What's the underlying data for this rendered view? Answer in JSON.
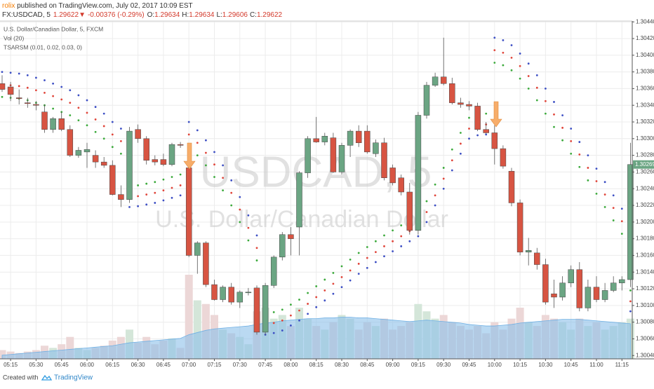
{
  "header": {
    "author": "rolix",
    "published": "published on TradingView.com, July 02, 2017 10:09 EST",
    "symbol": "FX:USDCAD, 5",
    "last": "1.29622",
    "arrow": "▼",
    "change": "-0.00376 (-0.29%)",
    "o_label": "O:",
    "o": "1.29634",
    "h_label": "H:",
    "h": "1.29634",
    "l_label": "L:",
    "l": "1.29606",
    "c_label": "C:",
    "c": "1.29622"
  },
  "footer": {
    "created": "Created with",
    "brand": "TradingView"
  },
  "chart_data": {
    "type": "candlestick",
    "title": "U.S. Dollar/Canadian Dollar, 5, FXCM",
    "watermark": [
      "USDCAD, 5",
      "U.S. Dollar/Canadian Dollar"
    ],
    "up_color": "#6ba583",
    "down_color": "#d75442",
    "grid": true,
    "ylim": [
      1.30036,
      1.30441
    ],
    "yticks": [
      {
        "value": 1.3004,
        "label": "1.30040"
      },
      {
        "value": 1.3006,
        "label": "1.30060"
      },
      {
        "value": 1.3008,
        "label": "1.30080"
      },
      {
        "value": 1.301,
        "label": "1.30100"
      },
      {
        "value": 1.3012,
        "label": "1.30120"
      },
      {
        "value": 1.3014,
        "label": "1.30140"
      },
      {
        "value": 1.3016,
        "label": "1.30160"
      },
      {
        "value": 1.3018,
        "label": "1.30180"
      },
      {
        "value": 1.302,
        "label": "1.30200"
      },
      {
        "value": 1.3022,
        "label": "1.30220"
      },
      {
        "value": 1.3024,
        "label": "1.30240"
      },
      {
        "value": 1.3026,
        "label": "1.30260"
      },
      {
        "value": 1.3028,
        "label": "1.30280"
      },
      {
        "value": 1.303,
        "label": "1.30300"
      },
      {
        "value": 1.3032,
        "label": "1.30320"
      },
      {
        "value": 1.3034,
        "label": "1.30340"
      },
      {
        "value": 1.3036,
        "label": "1.30360"
      },
      {
        "value": 1.3038,
        "label": "1.30380"
      },
      {
        "value": 1.304,
        "label": "1.30400"
      },
      {
        "value": 1.3042,
        "label": "1.30420"
      },
      {
        "value": 1.3044,
        "label": "1.30440"
      }
    ],
    "x": [
      "05:10",
      "05:15",
      "05:20",
      "05:25",
      "05:30",
      "05:35",
      "05:40",
      "05:45",
      "05:50",
      "05:55",
      "06:00",
      "06:05",
      "06:10",
      "06:15",
      "06:20",
      "06:25",
      "06:30",
      "06:35",
      "06:40",
      "06:45",
      "06:50",
      "06:55",
      "07:00",
      "07:05",
      "07:10",
      "07:15",
      "07:20",
      "07:25",
      "07:30",
      "07:35",
      "07:40",
      "07:45",
      "07:50",
      "07:55",
      "08:00",
      "08:05",
      "08:10",
      "08:15",
      "08:20",
      "08:25",
      "08:30",
      "08:35",
      "08:40",
      "08:45",
      "08:50",
      "08:55",
      "09:00",
      "09:05",
      "09:10",
      "09:15",
      "09:20",
      "09:25",
      "09:30",
      "09:35",
      "09:40",
      "09:45",
      "09:50",
      "09:55",
      "10:00",
      "10:05",
      "10:10",
      "10:15",
      "10:20",
      "10:25",
      "10:30",
      "10:35",
      "10:40",
      "10:45",
      "10:50",
      "10:55",
      "11:00",
      "11:05",
      "11:10",
      "11:15",
      "11:20"
    ],
    "xticks": [
      "05:15",
      "05:30",
      "05:45",
      "06:00",
      "06:15",
      "06:30",
      "06:45",
      "07:00",
      "07:15",
      "07:30",
      "07:45",
      "08:00",
      "08:15",
      "08:30",
      "08:45",
      "09:00",
      "09:15",
      "09:30",
      "09:45",
      "10:00",
      "10:15",
      "10:30",
      "10:45",
      "11:00",
      "11:15"
    ],
    "open": [
      1.30366,
      1.30362,
      1.30349,
      1.30343,
      1.30341,
      1.30332,
      1.30311,
      1.30324,
      1.30311,
      1.3028,
      1.30284,
      1.3028,
      1.30272,
      1.30268,
      1.30233,
      1.30227,
      1.30311,
      1.303,
      1.30275,
      1.30275,
      1.30269,
      1.30293,
      1.30265,
      1.3016,
      1.30175,
      1.30125,
      1.30107,
      1.30122,
      1.30104,
      1.30116,
      1.30121,
      1.30068,
      1.30124,
      1.30158,
      1.30185,
      1.30194,
      1.30259,
      1.303,
      1.30296,
      1.30301,
      1.3026,
      1.30292,
      1.30309,
      1.30309,
      1.30282,
      1.30295,
      1.30265,
      1.30253,
      1.30236,
      1.3019,
      1.30328,
      1.30364,
      1.30374,
      1.30366,
      1.30343,
      1.30341,
      1.30339,
      1.30311,
      1.30307,
      1.30288,
      1.30261,
      1.30223,
      1.30164,
      1.30163,
      1.30149,
      1.30114,
      1.3011,
      1.30127,
      1.30143,
      1.30097,
      1.30122,
      1.30107,
      1.30118,
      1.30127,
      1.30131
    ],
    "high": [
      1.30376,
      1.30368,
      1.30359,
      1.30349,
      1.30345,
      1.30341,
      1.30326,
      1.30332,
      1.30316,
      1.3029,
      1.30295,
      1.30286,
      1.30278,
      1.30274,
      1.30244,
      1.30314,
      1.30317,
      1.30303,
      1.3028,
      1.30282,
      1.30295,
      1.30296,
      1.30267,
      1.30177,
      1.30177,
      1.30131,
      1.30124,
      1.30127,
      1.30118,
      1.30121,
      1.30124,
      1.30127,
      1.3016,
      1.30188,
      1.30194,
      1.30261,
      1.30303,
      1.30326,
      1.30307,
      1.30307,
      1.30295,
      1.30311,
      1.30316,
      1.30316,
      1.30299,
      1.30301,
      1.30269,
      1.30257,
      1.30247,
      1.30332,
      1.30368,
      1.30379,
      1.30421,
      1.30373,
      1.30349,
      1.30345,
      1.30343,
      1.3032,
      1.30316,
      1.30292,
      1.30265,
      1.30227,
      1.30181,
      1.30169,
      1.30156,
      1.30131,
      1.30135,
      1.30148,
      1.30152,
      1.30131,
      1.30135,
      1.30127,
      1.30135,
      1.30135,
      1.30295
    ],
    "low": [
      1.30356,
      1.30345,
      1.30341,
      1.30337,
      1.30334,
      1.30307,
      1.30307,
      1.30309,
      1.30278,
      1.30277,
      1.30265,
      1.30265,
      1.30265,
      1.30232,
      1.30218,
      1.30223,
      1.30295,
      1.30269,
      1.30268,
      1.30267,
      1.30267,
      1.30289,
      1.30158,
      1.30138,
      1.30122,
      1.30106,
      1.30104,
      1.30101,
      1.30097,
      1.30112,
      1.30065,
      1.30065,
      1.30121,
      1.30154,
      1.3016,
      1.3016,
      1.30253,
      1.30295,
      1.30292,
      1.30259,
      1.30257,
      1.30278,
      1.3029,
      1.30282,
      1.30278,
      1.3025,
      1.30244,
      1.30232,
      1.30185,
      1.30185,
      1.30324,
      1.30362,
      1.30364,
      1.30341,
      1.30337,
      1.30334,
      1.30309,
      1.30306,
      1.30269,
      1.30264,
      1.30219,
      1.3016,
      1.30148,
      1.30143,
      1.30101,
      1.30097,
      1.30106,
      1.30122,
      1.30093,
      1.30093,
      1.30104,
      1.30104,
      1.30116,
      1.30118,
      1.30122
    ],
    "close": [
      1.30359,
      1.30353,
      1.30348,
      1.30342,
      1.3034,
      1.30311,
      1.30324,
      1.30311,
      1.3028,
      1.30286,
      1.30287,
      1.30272,
      1.30268,
      1.30233,
      1.30227,
      1.30309,
      1.303,
      1.30274,
      1.30272,
      1.30269,
      1.30293,
      1.30292,
      1.3016,
      1.30175,
      1.30125,
      1.30107,
      1.30122,
      1.30104,
      1.30116,
      1.30116,
      1.30068,
      1.30124,
      1.30158,
      1.30185,
      1.3018,
      1.30259,
      1.303,
      1.30296,
      1.30303,
      1.3026,
      1.30292,
      1.30309,
      1.30295,
      1.30284,
      1.30295,
      1.30253,
      1.30247,
      1.30236,
      1.3019,
      1.30328,
      1.30364,
      1.30374,
      1.30366,
      1.30343,
      1.30341,
      1.30339,
      1.30311,
      1.30307,
      1.30288,
      1.30267,
      1.30223,
      1.30164,
      1.30166,
      1.30149,
      1.30104,
      1.3011,
      1.30127,
      1.30143,
      1.30097,
      1.30122,
      1.30107,
      1.30118,
      1.30127,
      1.30131,
      1.30269
    ],
    "volume": {
      "name": "Vol (20)",
      "up_color": "#d4e6d9",
      "down_color": "#ecd7d7",
      "ma_color": "#8cc0ea",
      "values": [
        12,
        10,
        8,
        10,
        12,
        18,
        15,
        20,
        30,
        15,
        12,
        15,
        18,
        25,
        30,
        40,
        22,
        30,
        20,
        25,
        28,
        15,
        115,
        80,
        75,
        60,
        40,
        35,
        30,
        20,
        65,
        70,
        55,
        60,
        45,
        70,
        55,
        45,
        40,
        50,
        60,
        55,
        40,
        50,
        45,
        55,
        40,
        45,
        50,
        75,
        65,
        55,
        60,
        50,
        45,
        40,
        45,
        35,
        50,
        40,
        55,
        70,
        50,
        45,
        60,
        55,
        50,
        40,
        55,
        45,
        50,
        40,
        45,
        50,
        55
      ],
      "ma_values": [
        5,
        6,
        7,
        8,
        9,
        10,
        11,
        12,
        13,
        14,
        15,
        16,
        17,
        18,
        20,
        22,
        23,
        24,
        25,
        26,
        27,
        28,
        33,
        36,
        39,
        41,
        42,
        43,
        44,
        45,
        47,
        49,
        50,
        52,
        53,
        54,
        55,
        55,
        56,
        56,
        57,
        57,
        56,
        56,
        55,
        54,
        53,
        52,
        51,
        52,
        53,
        52,
        51,
        50,
        49,
        47,
        46,
        45,
        45,
        46,
        47,
        49,
        50,
        51,
        52,
        53,
        54,
        54,
        54,
        53,
        52,
        51,
        50,
        49,
        48
      ]
    },
    "sar": {
      "name": "TSARSM (0.01, 0.02, 0.03, 0)",
      "series": [
        {
          "color": "#3d4fc4",
          "values": [
            1.3038,
            1.30379,
            1.30378,
            1.30376,
            1.30373,
            1.3037,
            1.30366,
            1.30362,
            1.30358,
            1.30352,
            1.30346,
            1.30338,
            1.3033,
            1.3032,
            1.30312,
            1.30218,
            1.30219,
            1.30221,
            1.30223,
            1.30226,
            1.30229,
            1.30232,
            1.3032,
            1.3031,
            1.30298,
            1.30284,
            1.30268,
            1.3025,
            1.3023,
            1.30208,
            1.30184,
            1.30065,
            1.30067,
            1.3007,
            1.30076,
            1.30082,
            1.3009,
            1.30098,
            1.30106,
            1.30114,
            1.30122,
            1.3013,
            1.30138,
            1.30145,
            1.30152,
            1.30159,
            1.30165,
            1.30171,
            1.30177,
            1.30183,
            1.302,
            1.3022,
            1.3024,
            1.30262,
            1.30282,
            1.303,
            1.30304,
            1.30305,
            1.30421,
            1.30418,
            1.30412,
            1.30402,
            1.3039,
            1.30376,
            1.3036,
            1.30344,
            1.30328,
            1.30312,
            1.30296,
            1.3028,
            1.30264,
            1.30248,
            1.30232,
            1.30216,
            1.30093
          ]
        },
        {
          "color": "#e0453a",
          "values": [
            1.30365,
            1.30364,
            1.30363,
            1.30361,
            1.30358,
            1.30355,
            1.30351,
            1.30347,
            1.30343,
            1.30337,
            1.30331,
            1.30323,
            1.30315,
            1.30305,
            1.30297,
            1.3023,
            1.30231,
            1.30233,
            1.30235,
            1.30238,
            1.30241,
            1.30244,
            1.30305,
            1.30295,
            1.30283,
            1.30269,
            1.30253,
            1.30235,
            1.30215,
            1.30193,
            1.30169,
            1.30077,
            1.30079,
            1.30082,
            1.30088,
            1.30094,
            1.30102,
            1.3011,
            1.30118,
            1.30126,
            1.30134,
            1.30142,
            1.3015,
            1.30157,
            1.30164,
            1.30171,
            1.30177,
            1.30183,
            1.30189,
            1.30195,
            1.30212,
            1.30232,
            1.30252,
            1.30274,
            1.30294,
            1.30312,
            1.30316,
            1.30317,
            1.30406,
            1.30403,
            1.30397,
            1.30387,
            1.30375,
            1.30361,
            1.30345,
            1.30329,
            1.30313,
            1.30297,
            1.30281,
            1.30265,
            1.30249,
            1.30233,
            1.30217,
            1.30201,
            1.30105
          ]
        },
        {
          "color": "#3caa3c",
          "values": [
            1.3035,
            1.30349,
            1.30348,
            1.30346,
            1.30343,
            1.3034,
            1.30336,
            1.30332,
            1.30328,
            1.30322,
            1.30316,
            1.30308,
            1.303,
            1.3029,
            1.30282,
            1.30243,
            1.30244,
            1.30246,
            1.30248,
            1.30251,
            1.30254,
            1.30257,
            1.3029,
            1.3028,
            1.30268,
            1.30254,
            1.30238,
            1.3022,
            1.302,
            1.30178,
            1.30154,
            1.3009,
            1.30092,
            1.30095,
            1.30101,
            1.30107,
            1.30115,
            1.30123,
            1.30131,
            1.30139,
            1.30147,
            1.30155,
            1.30163,
            1.3017,
            1.30177,
            1.30184,
            1.3019,
            1.30196,
            1.30202,
            1.30208,
            1.30225,
            1.30245,
            1.30265,
            1.30287,
            1.30307,
            1.30325,
            1.30329,
            1.3033,
            1.30391,
            1.30388,
            1.30382,
            1.30372,
            1.3036,
            1.30346,
            1.3033,
            1.30314,
            1.30298,
            1.30282,
            1.30266,
            1.3025,
            1.30234,
            1.30218,
            1.30202,
            1.30186,
            1.30118
          ]
        }
      ]
    }
  }
}
